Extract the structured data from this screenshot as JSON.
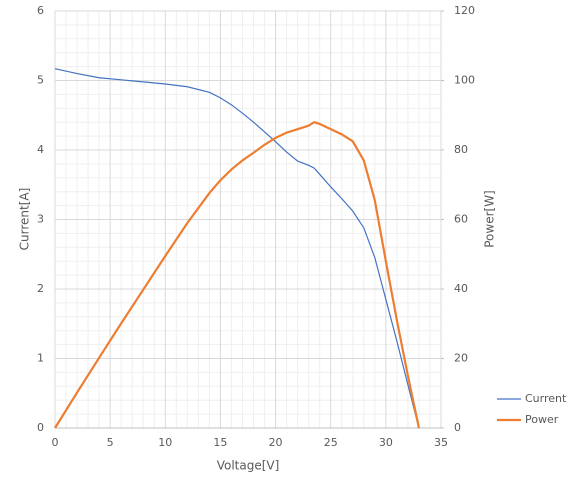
{
  "chart_data": {
    "type": "line",
    "x_label": "Voltage[V]",
    "y_label": "Current[A]",
    "y2_label": "Power[W]",
    "x": [
      0,
      2,
      4,
      6,
      8,
      10,
      12,
      14,
      15,
      16,
      17,
      18,
      19,
      20,
      21,
      22,
      23,
      23.5,
      24,
      25,
      26,
      27,
      28,
      29,
      30,
      31,
      32,
      33
    ],
    "series": [
      {
        "name": "Current",
        "color": "#4472c4",
        "values": [
          5.17,
          5.1,
          5.04,
          5.01,
          4.98,
          4.95,
          4.91,
          4.83,
          4.75,
          4.65,
          4.53,
          4.4,
          4.26,
          4.12,
          3.97,
          3.84,
          3.78,
          3.74,
          3.65,
          3.47,
          3.3,
          3.12,
          2.88,
          2.45,
          1.85,
          1.25,
          0.62,
          0
        ]
      },
      {
        "name": "Power",
        "color": "#ed7d31",
        "axis": "y2",
        "values": [
          0,
          10.2,
          20.2,
          30.1,
          39.8,
          49.5,
          59,
          67.6,
          71.3,
          74.4,
          77,
          79.2,
          81.5,
          83.5,
          85,
          86,
          87,
          88,
          87.5,
          86,
          84.5,
          82.5,
          77,
          65.5,
          48,
          31,
          15,
          0
        ]
      }
    ],
    "xlim": [
      0,
      35
    ],
    "xticks": [
      0,
      5,
      10,
      15,
      20,
      25,
      30,
      35
    ],
    "ylim": [
      0,
      6
    ],
    "yticks": [
      0,
      1,
      2,
      3,
      4,
      5,
      6
    ],
    "y2lim": [
      0,
      120
    ],
    "y2ticks": [
      0,
      20,
      40,
      60,
      80,
      100,
      120
    ],
    "grid": true,
    "minor_grid": true,
    "legend": "bottom-right"
  }
}
